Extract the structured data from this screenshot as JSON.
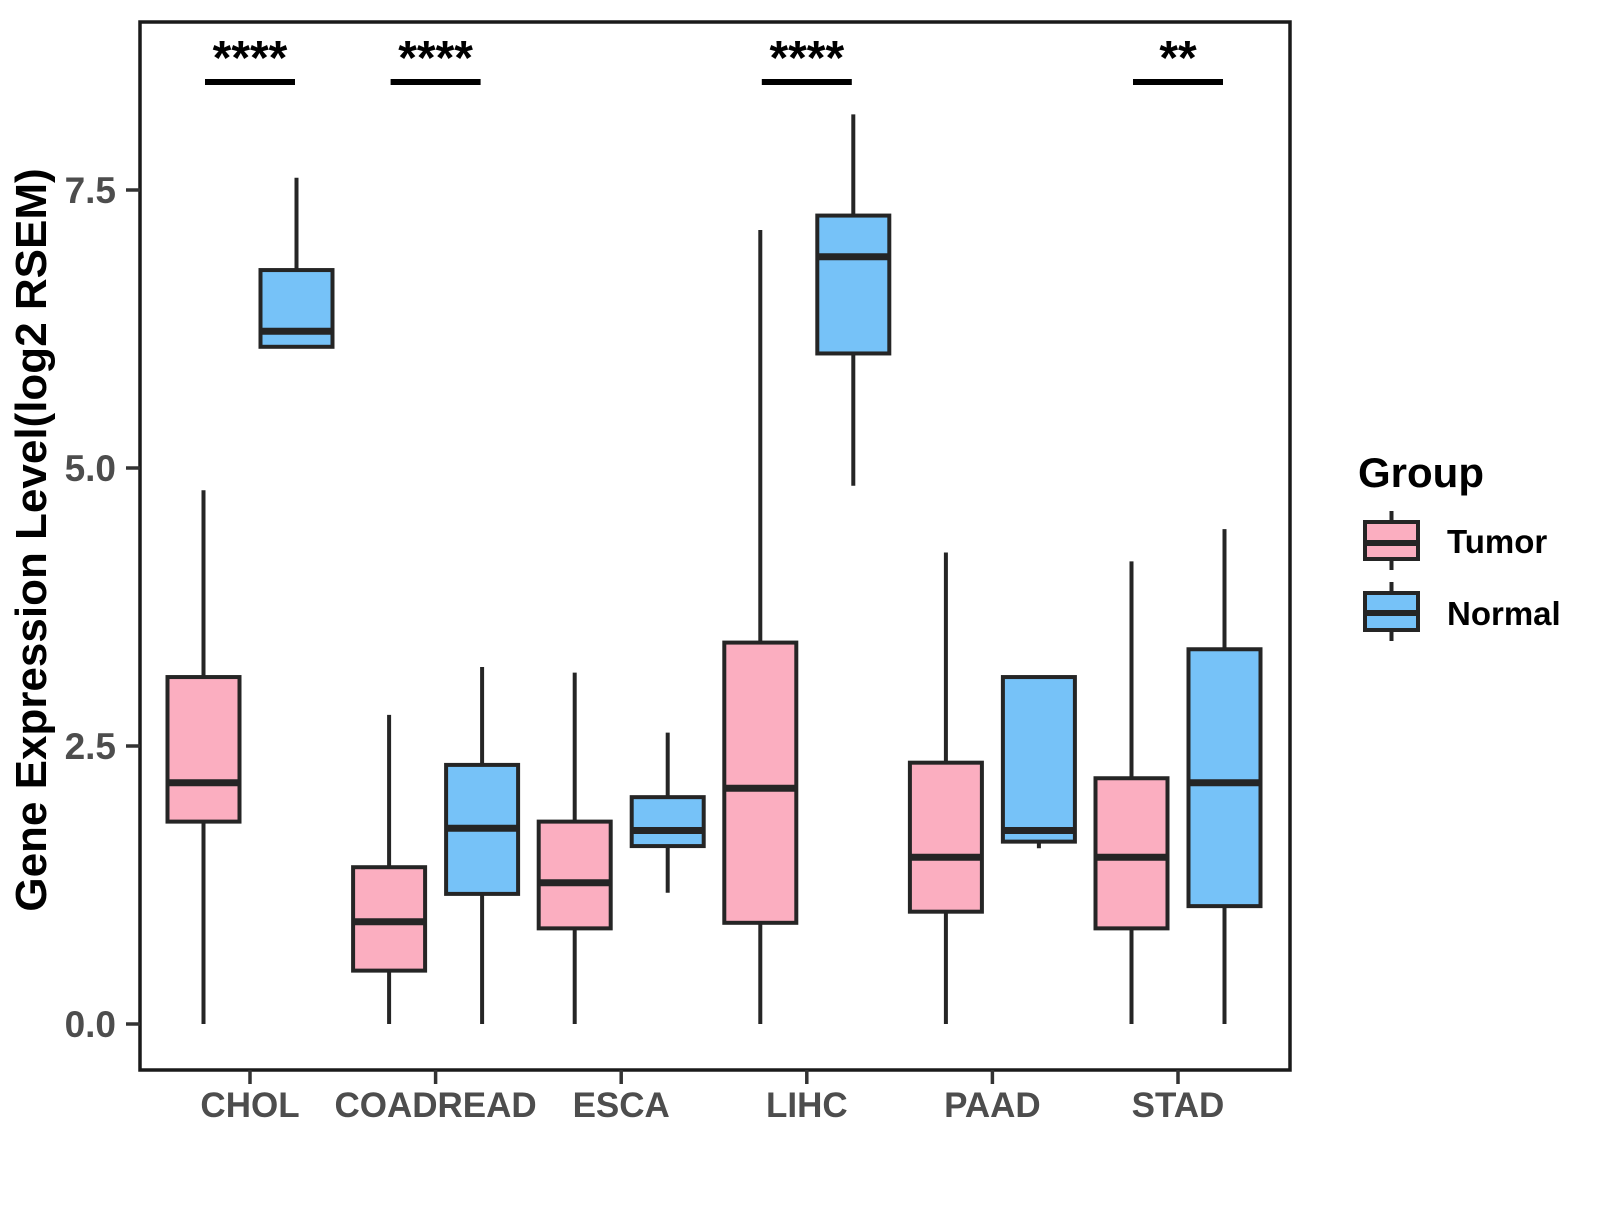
{
  "figure": {
    "y_axis_title": "Gene Expression Level(log2 RSEM)",
    "legend_title": "Group",
    "legend_items": [
      {
        "label": "Tumor",
        "color": "#FBAEC0"
      },
      {
        "label": "Normal",
        "color": "#76C2F8"
      }
    ]
  },
  "colors": {
    "tumor_fill": "#FBAEC0",
    "normal_fill": "#76C2F8",
    "box_border": "#252525",
    "median_line": "#252525",
    "axis_text": "#4d4d4d",
    "axis_line": "#333333",
    "significance_mark": "#000000",
    "panel_border": "#1a1a1a",
    "background": "#ffffff"
  },
  "chart_data": {
    "type": "boxplot",
    "title": "",
    "xlabel": "",
    "ylabel": "Gene Expression Level(log2 RSEM)",
    "categories": [
      "CHOL",
      "COADREAD",
      "ESCA",
      "LIHC",
      "PAAD",
      "STAD"
    ],
    "y_ticks": [
      0.0,
      2.5,
      5.0,
      7.5
    ],
    "y_tick_labels": [
      "0.0",
      "2.5",
      "5.0",
      "7.5"
    ],
    "ylim": [
      -0.42,
      9.0
    ],
    "grid": false,
    "legend_position": "right",
    "series": [
      {
        "name": "Tumor",
        "color": "#FBAEC0",
        "boxes": [
          {
            "category": "CHOL",
            "min": 0.0,
            "q1": 1.82,
            "median": 2.17,
            "q3": 3.12,
            "max": 4.8
          },
          {
            "category": "COADREAD",
            "min": 0.0,
            "q1": 0.48,
            "median": 0.92,
            "q3": 1.41,
            "max": 2.78
          },
          {
            "category": "ESCA",
            "min": 0.0,
            "q1": 0.86,
            "median": 1.27,
            "q3": 1.82,
            "max": 3.16
          },
          {
            "category": "LIHC",
            "min": 0.0,
            "q1": 0.91,
            "median": 2.12,
            "q3": 3.43,
            "max": 7.14
          },
          {
            "category": "PAAD",
            "min": 0.0,
            "q1": 1.01,
            "median": 1.5,
            "q3": 2.35,
            "max": 4.24
          },
          {
            "category": "STAD",
            "min": 0.0,
            "q1": 0.86,
            "median": 1.5,
            "q3": 2.21,
            "max": 4.16
          }
        ]
      },
      {
        "name": "Normal",
        "color": "#76C2F8",
        "boxes": [
          {
            "category": "CHOL",
            "min": 6.09,
            "q1": 6.09,
            "median": 6.23,
            "q3": 6.78,
            "max": 7.61
          },
          {
            "category": "COADREAD",
            "min": 0.0,
            "q1": 1.17,
            "median": 1.76,
            "q3": 2.33,
            "max": 3.21
          },
          {
            "category": "ESCA",
            "min": 1.18,
            "q1": 1.6,
            "median": 1.74,
            "q3": 2.04,
            "max": 2.62
          },
          {
            "category": "LIHC",
            "min": 4.84,
            "q1": 6.03,
            "median": 6.9,
            "q3": 7.27,
            "max": 8.18
          },
          {
            "category": "PAAD",
            "min": 1.58,
            "q1": 1.64,
            "median": 1.74,
            "q3": 3.12,
            "max": 3.12
          },
          {
            "category": "STAD",
            "min": 0.0,
            "q1": 1.06,
            "median": 2.17,
            "q3": 3.37,
            "max": 4.45
          }
        ]
      }
    ],
    "significance": [
      {
        "category": "CHOL",
        "label": "****"
      },
      {
        "category": "COADREAD",
        "label": "****"
      },
      {
        "category": "LIHC",
        "label": "****"
      },
      {
        "category": "STAD",
        "label": "**"
      }
    ]
  }
}
